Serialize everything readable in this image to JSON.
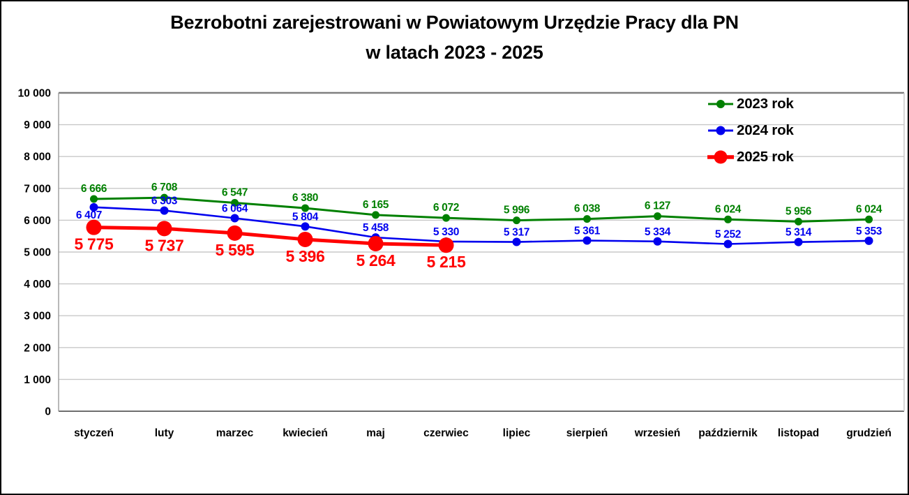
{
  "title": {
    "line1": "Bezrobotni zarejestrowani w Powiatowym Urzędzie Pracy dla PN",
    "line2": "w latach 2023 - 2025"
  },
  "chart_data": {
    "type": "line",
    "title": "Bezrobotni zarejestrowani w Powiatowym Urzędzie Pracy dla PN w latach 2023 - 2025",
    "categories": [
      "styczeń",
      "luty",
      "marzec",
      "kwiecień",
      "maj",
      "czerwiec",
      "lipiec",
      "sierpień",
      "wrzesień",
      "październik",
      "listopad",
      "grudzień"
    ],
    "series": [
      {
        "name": "2023 rok",
        "color": "#008000",
        "values": [
          6666,
          6708,
          6547,
          6380,
          6165,
          6072,
          5996,
          6038,
          6127,
          6024,
          5956,
          6024
        ]
      },
      {
        "name": "2024 rok",
        "color": "#0000EE",
        "values": [
          6407,
          6303,
          6064,
          5804,
          5458,
          5330,
          5317,
          5361,
          5334,
          5252,
          5314,
          5353
        ]
      },
      {
        "name": "2025 rok",
        "color": "#FF0000",
        "values": [
          5775,
          5737,
          5595,
          5396,
          5264,
          5215
        ]
      }
    ],
    "ylim": [
      0,
      10000
    ],
    "ytick_step": 1000,
    "ytick_labels": [
      "0",
      "1 000",
      "2 000",
      "3 000",
      "4 000",
      "5 000",
      "6 000",
      "7 000",
      "8 000",
      "9 000",
      "10 000"
    ],
    "grid": true,
    "legend_position": "top-right",
    "number_format": "space-thousands",
    "data_labels": true
  }
}
